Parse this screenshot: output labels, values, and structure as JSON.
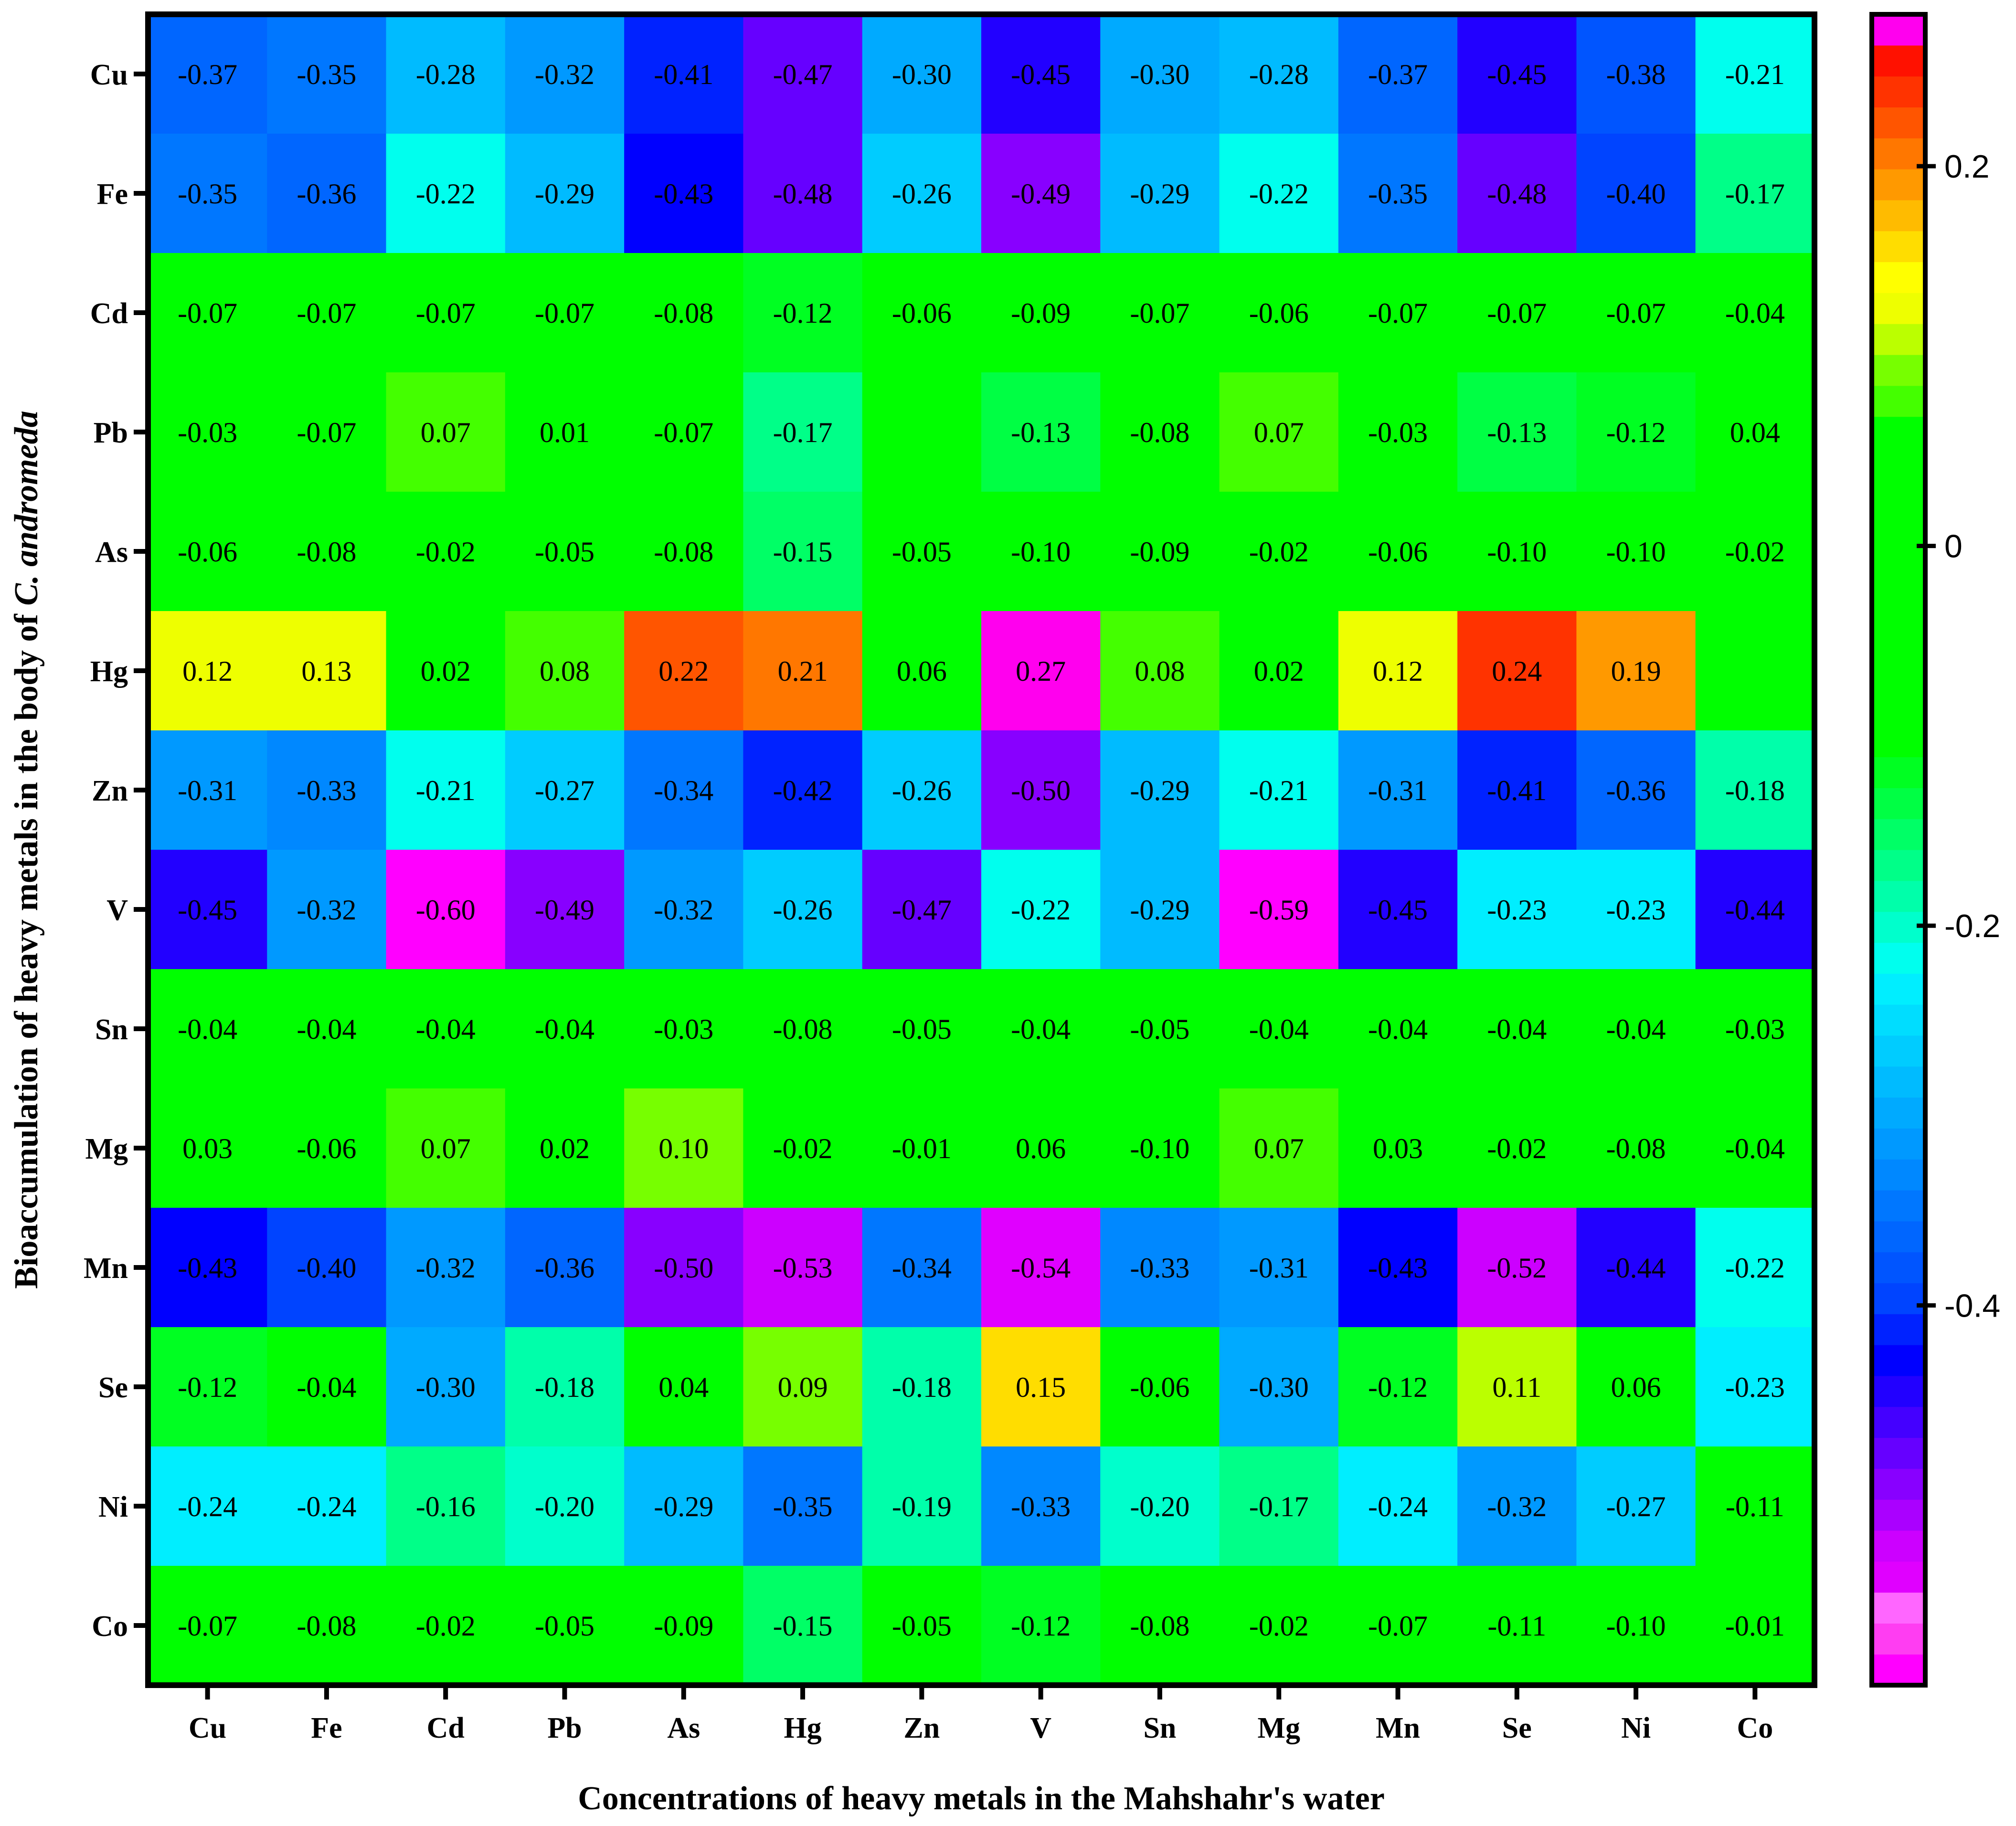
{
  "chart_data": {
    "type": "heatmap",
    "xlabel": "Concentrations of heavy metals in the Mahshahr's water",
    "ylabel": {
      "prefix": "Bioaccumulation of heavy metals in the body of ",
      "italic": "C. andromeda"
    },
    "x_categories": [
      "Cu",
      "Fe",
      "Cd",
      "Pb",
      "As",
      "Hg",
      "Zn",
      "V",
      "Sn",
      "Mg",
      "Mn",
      "Se",
      "Ni",
      "Co"
    ],
    "y_categories": [
      "Cu",
      "Fe",
      "Cd",
      "Pb",
      "As",
      "Hg",
      "Zn",
      "V",
      "Sn",
      "Mg",
      "Mn",
      "Se",
      "Ni",
      "Co"
    ],
    "values": [
      [
        -0.37,
        -0.35,
        -0.28,
        -0.32,
        -0.41,
        -0.47,
        -0.3,
        -0.45,
        -0.3,
        -0.28,
        -0.37,
        -0.45,
        -0.38,
        -0.21
      ],
      [
        -0.35,
        -0.36,
        -0.22,
        -0.29,
        -0.43,
        -0.48,
        -0.26,
        -0.49,
        -0.29,
        -0.22,
        -0.35,
        -0.48,
        -0.4,
        -0.17
      ],
      [
        -0.07,
        -0.07,
        -0.07,
        -0.07,
        -0.08,
        -0.12,
        -0.06,
        -0.09,
        -0.07,
        -0.06,
        -0.07,
        -0.07,
        -0.07,
        -0.04
      ],
      [
        -0.03,
        -0.07,
        0.07,
        0.01,
        -0.07,
        -0.17,
        null,
        -0.13,
        -0.08,
        0.07,
        -0.03,
        -0.13,
        -0.12,
        0.04
      ],
      [
        -0.06,
        -0.08,
        -0.02,
        -0.05,
        -0.08,
        -0.15,
        -0.05,
        -0.1,
        -0.09,
        -0.02,
        -0.06,
        -0.1,
        -0.1,
        -0.02
      ],
      [
        0.12,
        0.13,
        0.02,
        0.08,
        0.22,
        0.21,
        0.06,
        0.27,
        0.08,
        0.02,
        0.12,
        0.24,
        0.19,
        null
      ],
      [
        -0.31,
        -0.33,
        -0.21,
        -0.27,
        -0.34,
        -0.42,
        -0.26,
        -0.5,
        -0.29,
        -0.21,
        -0.31,
        -0.41,
        -0.36,
        -0.18
      ],
      [
        -0.45,
        -0.32,
        -0.6,
        -0.49,
        -0.32,
        -0.26,
        -0.47,
        -0.22,
        -0.29,
        -0.59,
        -0.45,
        -0.23,
        -0.23,
        -0.44
      ],
      [
        -0.04,
        -0.04,
        -0.04,
        -0.04,
        -0.03,
        -0.08,
        -0.05,
        -0.04,
        -0.05,
        -0.04,
        -0.04,
        -0.04,
        -0.04,
        -0.03
      ],
      [
        0.03,
        -0.06,
        0.07,
        0.02,
        0.1,
        -0.02,
        -0.01,
        0.06,
        -0.1,
        0.07,
        0.03,
        -0.02,
        -0.08,
        -0.04
      ],
      [
        -0.43,
        -0.4,
        -0.32,
        -0.36,
        -0.5,
        -0.53,
        -0.34,
        -0.54,
        -0.33,
        -0.31,
        -0.43,
        -0.52,
        -0.44,
        -0.22
      ],
      [
        -0.12,
        -0.04,
        -0.3,
        -0.18,
        0.04,
        0.09,
        -0.18,
        0.15,
        -0.06,
        -0.3,
        -0.12,
        0.11,
        0.06,
        -0.23
      ],
      [
        -0.24,
        -0.24,
        -0.16,
        -0.2,
        -0.29,
        -0.35,
        -0.19,
        -0.33,
        -0.2,
        -0.17,
        -0.24,
        -0.32,
        -0.27,
        -0.11
      ],
      [
        -0.07,
        -0.08,
        -0.02,
        -0.05,
        -0.09,
        -0.15,
        -0.05,
        -0.12,
        -0.08,
        -0.02,
        -0.07,
        -0.11,
        -0.1,
        -0.01
      ]
    ],
    "colorbar": {
      "range": [
        -0.6,
        0.28
      ],
      "ticks": [
        0.2,
        0,
        -0.2,
        -0.4
      ],
      "tick_labels": [
        "0.2",
        "0",
        "-0.2",
        "-0.4"
      ],
      "colors": [
        "#ff00ff",
        "#ff3df2",
        "#ff66ff",
        "#e000ff",
        "#cc00ff",
        "#aa00ff",
        "#8800ff",
        "#6600ff",
        "#4400ff",
        "#2200ff",
        "#0000ff",
        "#0022ff",
        "#0044ff",
        "#0055ff",
        "#0066ff",
        "#0077ff",
        "#0088ff",
        "#0099ff",
        "#00aaff",
        "#00bbff",
        "#00ccff",
        "#00ddff",
        "#00eeff",
        "#00ffee",
        "#00ffcc",
        "#00ffaa",
        "#00ff88",
        "#00ff66",
        "#00ff44",
        "#00ff22",
        "#00ff00",
        "#00ff00",
        "#00ff00",
        "#00ff00",
        "#00ff00",
        "#00ff00",
        "#00ff00",
        "#00ff00",
        "#00ff00",
        "#00ff00",
        "#00ff00",
        "#44ff00",
        "#77ff00",
        "#bbff00",
        "#eeff00",
        "#ffff00",
        "#ffdd00",
        "#ffbb00",
        "#ff9900",
        "#ff7700",
        "#ff5500",
        "#ff3300",
        "#ff1100",
        "#ff00ee"
      ]
    },
    "grid": false,
    "legend": "right colorbar"
  }
}
